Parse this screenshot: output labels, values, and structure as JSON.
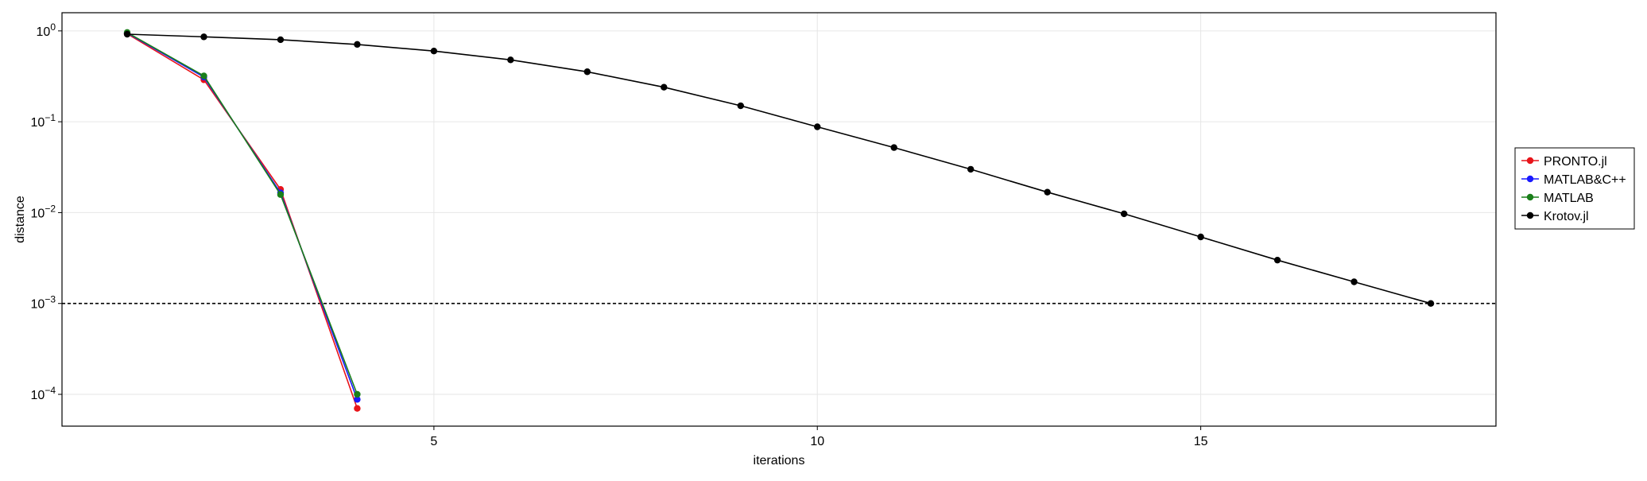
{
  "chart_data": {
    "type": "line",
    "xlabel": "iterations",
    "ylabel": "distance",
    "xlim": [
      0.15,
      18.85
    ],
    "ylim_log10": [
      -4.35,
      0.2
    ],
    "y_scale": "log10",
    "grid": true,
    "legend_position": "right",
    "x_ticks": [
      {
        "value": 5,
        "label": "5"
      },
      {
        "value": 10,
        "label": "10"
      },
      {
        "value": 15,
        "label": "15"
      }
    ],
    "y_ticks": [
      {
        "exp": 0,
        "base": "10",
        "sup": "0"
      },
      {
        "exp": -1,
        "base": "10",
        "sup": "−1"
      },
      {
        "exp": -2,
        "base": "10",
        "sup": "−2"
      },
      {
        "exp": -3,
        "base": "10",
        "sup": "−3"
      },
      {
        "exp": -4,
        "base": "10",
        "sup": "−4"
      }
    ],
    "threshold": {
      "value": 0.001,
      "style": "dashed"
    },
    "series": [
      {
        "name": "PRONTO.jl",
        "color": "#e8141a",
        "x": [
          1,
          2,
          3,
          4
        ],
        "y": [
          0.93,
          0.29,
          0.018,
          7e-05
        ]
      },
      {
        "name": "MATLAB&C++",
        "color": "#1a1aff",
        "x": [
          1,
          2,
          3,
          4
        ],
        "y": [
          0.95,
          0.31,
          0.0165,
          8.8e-05
        ]
      },
      {
        "name": "MATLAB",
        "color": "#1a7f1a",
        "x": [
          1,
          2,
          3,
          4
        ],
        "y": [
          0.96,
          0.32,
          0.0158,
          0.0001
        ]
      },
      {
        "name": "Krotov.jl",
        "color": "#000000",
        "x": [
          1,
          2,
          3,
          4,
          5,
          6,
          7,
          8,
          9,
          10,
          11,
          12,
          13,
          14,
          15,
          16,
          17,
          18
        ],
        "y": [
          0.92,
          0.86,
          0.8,
          0.71,
          0.6,
          0.48,
          0.355,
          0.24,
          0.15,
          0.088,
          0.052,
          0.03,
          0.0168,
          0.0097,
          0.0054,
          0.003,
          0.00173,
          0.001
        ]
      }
    ]
  }
}
